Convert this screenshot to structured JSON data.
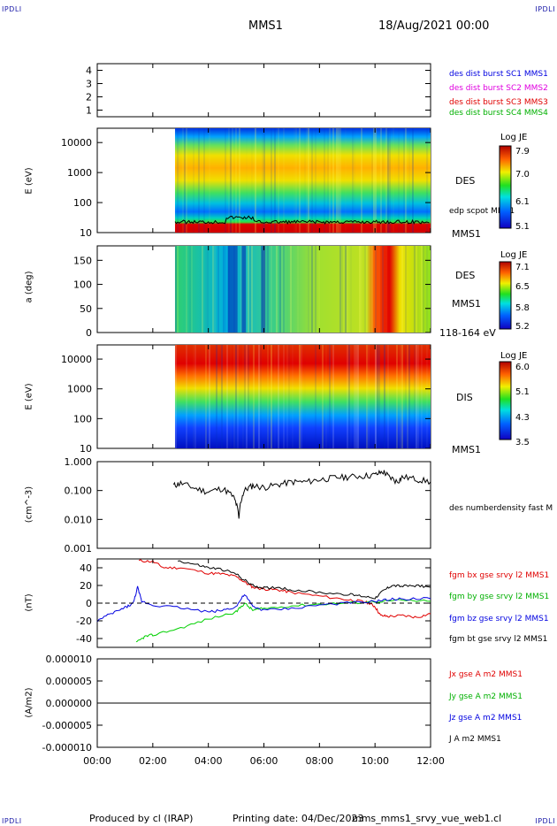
{
  "header": {
    "corner_left": "IPDLI",
    "corner_right": "IPDLI",
    "mission": "MMS1",
    "datetime": "18/Aug/2021 00:00",
    "footer_left": "Produced by cl (IRAP)",
    "footer_mid": "Printing date: 04/Dec/2023",
    "footer_right": "mms_mms1_srvy_vue_web1.cl",
    "corner_bl": "IPDLI",
    "corner_br": "IPDLI"
  },
  "colors": {
    "red": "#e00000",
    "green": "#00d000",
    "blue": "#0000e0",
    "magenta": "#e000e0",
    "black": "#000000"
  },
  "chart_data": [
    {
      "type": "line",
      "panel": "availability",
      "y_ticks": [
        "4",
        "3",
        "2",
        "1"
      ],
      "ylim": [
        0.5,
        4.5
      ],
      "series": [
        {
          "name": "des dist burst SC1 MMS1",
          "color": "#0000e0",
          "values": []
        },
        {
          "name": "des dist burst SC2 MMS2",
          "color": "#e000e0",
          "values": []
        },
        {
          "name": "des dist burst SC3 MMS3",
          "color": "#e00000",
          "values": []
        },
        {
          "name": "des dist burst SC4 MMS4",
          "color": "#00d000",
          "values": []
        }
      ]
    },
    {
      "type": "heatmap",
      "panel": "des-energy",
      "ylabel": "E (eV)",
      "y_ticks": [
        "10000",
        "1000",
        "100",
        "10"
      ],
      "ylim": [
        10,
        30000
      ],
      "scale": "log",
      "inst": "DES",
      "sc": "MMS1",
      "overlay_label": "edp scpot MMS1",
      "cbar_title": "Log JE",
      "cbar_ticks": [
        "7.9",
        "7.0",
        "6.1",
        "5.1"
      ],
      "x_start": "02:48",
      "x_end": "12:00"
    },
    {
      "type": "heatmap",
      "panel": "des-pitch",
      "ylabel": "a (deg)",
      "y_ticks": [
        "150",
        "100",
        "50",
        "0"
      ],
      "ylim": [
        0,
        180
      ],
      "inst": "DES",
      "sc": "MMS1",
      "energy_range": "118-164 eV",
      "cbar_title": "Log JE",
      "cbar_ticks": [
        "7.1",
        "6.5",
        "5.8",
        "5.2"
      ],
      "x_start": "02:48",
      "x_end": "12:00"
    },
    {
      "type": "heatmap",
      "panel": "dis-energy",
      "ylabel": "E (eV)",
      "y_ticks": [
        "10000",
        "1000",
        "100",
        "10"
      ],
      "ylim": [
        10,
        30000
      ],
      "scale": "log",
      "inst": "DIS",
      "sc": "MMS1",
      "cbar_title": "Log JE",
      "cbar_ticks": [
        "6.0",
        "5.1",
        "4.3",
        "3.5"
      ],
      "x_start": "02:48",
      "x_end": "12:00"
    },
    {
      "type": "line",
      "panel": "density",
      "ylabel": "(cm^-3)",
      "y_ticks": [
        "1.000",
        "0.100",
        "0.010",
        "0.001"
      ],
      "ylim": [
        0.001,
        1.0
      ],
      "scale": "log",
      "series": [
        {
          "name": "des numberdensity fast M",
          "color": "#000000",
          "x": [
            2.75,
            3.0,
            3.5,
            4.0,
            4.5,
            4.9,
            5.1,
            5.3,
            5.6,
            6.0,
            6.5,
            7.0,
            7.5,
            8.0,
            8.5,
            9.0,
            9.5,
            10.0,
            10.3,
            10.5,
            10.8,
            11.0,
            11.5,
            12.0
          ],
          "values": [
            0.15,
            0.18,
            0.12,
            0.09,
            0.12,
            0.06,
            0.01,
            0.1,
            0.15,
            0.13,
            0.16,
            0.2,
            0.2,
            0.24,
            0.28,
            0.3,
            0.32,
            0.35,
            0.45,
            0.3,
            0.2,
            0.3,
            0.25,
            0.2
          ]
        }
      ]
    },
    {
      "type": "line",
      "panel": "fgm",
      "ylabel": "(nT)",
      "y_ticks": [
        "40",
        "20",
        "0",
        "-20",
        "-40"
      ],
      "ylim": [
        -50,
        50
      ],
      "series": [
        {
          "name": "fgm bx gse srvy l2 MMS1",
          "color": "#e00000",
          "x": [
            1.5,
            2.0,
            2.4,
            3.0,
            4.0,
            4.5,
            5.0,
            5.3,
            5.6,
            6.0,
            6.5,
            7.0,
            8.0,
            9.0,
            9.5,
            9.8,
            10.0,
            10.2,
            10.5,
            11.0,
            11.5,
            12.0
          ],
          "values": [
            48,
            47,
            40,
            40,
            34,
            33,
            30,
            24,
            18,
            16,
            15,
            12,
            8,
            4,
            2,
            0,
            -4,
            -14,
            -15,
            -14,
            -16,
            -12
          ]
        },
        {
          "name": "fgm by gse srvy l2 MMS1",
          "color": "#00d000",
          "x": [
            1.4,
            1.7,
            2.0,
            3.0,
            4.0,
            5.0,
            5.3,
            5.6,
            6.0,
            7.0,
            8.0,
            9.0,
            10.0,
            11.0,
            12.0
          ],
          "values": [
            -45,
            -38,
            -36,
            -28,
            -18,
            -10,
            0,
            -8,
            -6,
            -3,
            -1,
            0,
            2,
            3,
            2
          ]
        },
        {
          "name": "fgm bz gse srvy l2 MMS1",
          "color": "#0000e0",
          "x": [
            0.0,
            0.5,
            1.0,
            1.3,
            1.45,
            1.6,
            2.0,
            3.0,
            4.0,
            4.5,
            5.0,
            5.3,
            5.6,
            6.0,
            7.0,
            8.0,
            9.0,
            10.0,
            10.5,
            11.0,
            12.0
          ],
          "values": [
            -20,
            -12,
            -5,
            0,
            18,
            2,
            -2,
            -5,
            -10,
            -8,
            -4,
            10,
            -4,
            -8,
            -6,
            -2,
            0,
            2,
            4,
            5,
            5
          ]
        },
        {
          "name": "fgm bt gse srvy l2 MMS1",
          "color": "#000000",
          "x": [
            2.9,
            3.5,
            4.0,
            4.5,
            5.0,
            5.3,
            5.6,
            6.0,
            6.5,
            7.0,
            8.0,
            9.0,
            9.5,
            10.0,
            10.3,
            10.6,
            11.0,
            11.5,
            12.0
          ],
          "values": [
            48,
            44,
            40,
            38,
            33,
            26,
            20,
            17,
            18,
            15,
            12,
            10,
            8,
            6,
            14,
            20,
            19,
            20,
            18
          ]
        }
      ]
    },
    {
      "type": "line",
      "panel": "current",
      "ylabel": "(A/m2)",
      "y_ticks": [
        "0.000010",
        "0.000005",
        "0.000000",
        "-0.000005",
        "-0.000010"
      ],
      "ylim": [
        -1e-05,
        1e-05
      ],
      "series": [
        {
          "name": "Jx gse A m2 MMS1",
          "color": "#e00000",
          "x": [
            0,
            12
          ],
          "values": [
            0,
            0
          ]
        },
        {
          "name": "Jy gse A m2 MMS1",
          "color": "#00d000",
          "x": [
            0,
            12
          ],
          "values": [
            0,
            0
          ]
        },
        {
          "name": "Jz gse A m2 MMS1",
          "color": "#0000e0",
          "x": [
            0,
            12
          ],
          "values": [
            0,
            0
          ]
        },
        {
          "name": "J A m2 MMS1",
          "color": "#000000",
          "x": [
            0,
            12
          ],
          "values": [
            0,
            0
          ]
        }
      ]
    }
  ],
  "x_axis": {
    "ticks": [
      "00:00",
      "02:00",
      "04:00",
      "06:00",
      "08:00",
      "10:00",
      "12:00"
    ],
    "range": [
      0,
      12
    ]
  }
}
